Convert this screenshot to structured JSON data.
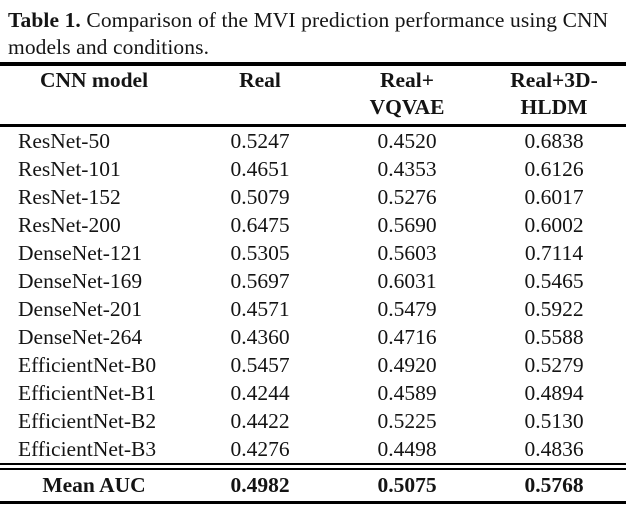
{
  "caption": {
    "label": "Table 1.",
    "text": "Comparison of the MVI prediction performance using CNN models and conditions."
  },
  "colors": {
    "text": "#141414",
    "rule": "#000000",
    "background": "#ffffff"
  },
  "table": {
    "header": {
      "model": "CNN model",
      "real": "Real",
      "vqvae_line1": "Real+",
      "vqvae_line2": "VQVAE",
      "hldm_line1": "Real+3D-",
      "hldm_line2": "HLDM"
    },
    "rows": [
      {
        "model": "ResNet-50",
        "real": "0.5247",
        "real_vqvae": "0.4520",
        "real_3d_hldm": "0.6838"
      },
      {
        "model": "ResNet-101",
        "real": "0.4651",
        "real_vqvae": "0.4353",
        "real_3d_hldm": "0.6126"
      },
      {
        "model": "ResNet-152",
        "real": "0.5079",
        "real_vqvae": "0.5276",
        "real_3d_hldm": "0.6017"
      },
      {
        "model": "ResNet-200",
        "real": "0.6475",
        "real_vqvae": "0.5690",
        "real_3d_hldm": "0.6002"
      },
      {
        "model": "DenseNet-121",
        "real": "0.5305",
        "real_vqvae": "0.5603",
        "real_3d_hldm": "0.7114"
      },
      {
        "model": "DenseNet-169",
        "real": "0.5697",
        "real_vqvae": "0.6031",
        "real_3d_hldm": "0.5465"
      },
      {
        "model": "DenseNet-201",
        "real": "0.4571",
        "real_vqvae": "0.5479",
        "real_3d_hldm": "0.5922"
      },
      {
        "model": "DenseNet-264",
        "real": "0.4360",
        "real_vqvae": "0.4716",
        "real_3d_hldm": "0.5588"
      },
      {
        "model": "EfficientNet-B0",
        "real": "0.5457",
        "real_vqvae": "0.4920",
        "real_3d_hldm": "0.5279"
      },
      {
        "model": "EfficientNet-B1",
        "real": "0.4244",
        "real_vqvae": "0.4589",
        "real_3d_hldm": "0.4894"
      },
      {
        "model": "EfficientNet-B2",
        "real": "0.4422",
        "real_vqvae": "0.5225",
        "real_3d_hldm": "0.5130"
      },
      {
        "model": "EfficientNet-B3",
        "real": "0.4276",
        "real_vqvae": "0.4498",
        "real_3d_hldm": "0.4836"
      }
    ],
    "footer": {
      "label": "Mean AUC",
      "real": "0.4982",
      "real_vqvae": "0.5075",
      "real_3d_hldm": "0.5768"
    }
  }
}
